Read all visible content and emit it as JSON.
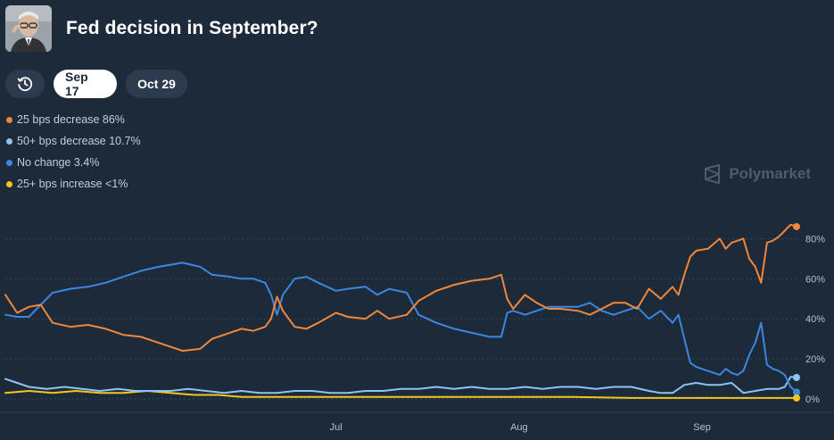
{
  "header": {
    "title": "Fed decision in September?"
  },
  "toolbar": {
    "history_icon": "clock-history-icon",
    "tabs": [
      "Sep 17",
      "Oct 29"
    ],
    "active_tab": "Sep 17"
  },
  "legend": [
    {
      "label": "25 bps decrease 86%",
      "color": "#f2873a"
    },
    {
      "label": "50+ bps decrease 10.7%",
      "color": "#8fc3f5"
    },
    {
      "label": "No change 3.4%",
      "color": "#3b87e0"
    },
    {
      "label": "25+ bps increase <1%",
      "color": "#f5c518"
    }
  ],
  "brand": {
    "name": "Polymarket",
    "icon": "polymarket-logo-icon"
  },
  "chart_data": {
    "type": "line",
    "x_tick_labels": [
      "Jul",
      "Aug",
      "Sep"
    ],
    "y_tick_labels": [
      "80%",
      "60%",
      "40%",
      "20%",
      "0%"
    ],
    "y_ticks": [
      80,
      60,
      40,
      20,
      0
    ],
    "ylim": [
      0,
      90
    ],
    "xlim": [
      "2025-05-06",
      "2025-09-17"
    ],
    "grid": true,
    "series": [
      {
        "name": "25 bps decrease",
        "color": "#f2873a",
        "points": [
          [
            "2025-05-06",
            52
          ],
          [
            "2025-05-08",
            43
          ],
          [
            "2025-05-10",
            46
          ],
          [
            "2025-05-12",
            47
          ],
          [
            "2025-05-14",
            38
          ],
          [
            "2025-05-17",
            36
          ],
          [
            "2025-05-20",
            37
          ],
          [
            "2025-05-23",
            35
          ],
          [
            "2025-05-26",
            32
          ],
          [
            "2025-05-29",
            31
          ],
          [
            "2025-06-01",
            28
          ],
          [
            "2025-06-03",
            26
          ],
          [
            "2025-06-05",
            24
          ],
          [
            "2025-06-08",
            25
          ],
          [
            "2025-06-10",
            30
          ],
          [
            "2025-06-13",
            33
          ],
          [
            "2025-06-15",
            35
          ],
          [
            "2025-06-17",
            34
          ],
          [
            "2025-06-19",
            36
          ],
          [
            "2025-06-20",
            40
          ],
          [
            "2025-06-21",
            51
          ],
          [
            "2025-06-22",
            44
          ],
          [
            "2025-06-24",
            36
          ],
          [
            "2025-06-26",
            35
          ],
          [
            "2025-06-28",
            38
          ],
          [
            "2025-07-01",
            43
          ],
          [
            "2025-07-03",
            41
          ],
          [
            "2025-07-06",
            40
          ],
          [
            "2025-07-08",
            44
          ],
          [
            "2025-07-10",
            40
          ],
          [
            "2025-07-13",
            42
          ],
          [
            "2025-07-15",
            49
          ],
          [
            "2025-07-18",
            54
          ],
          [
            "2025-07-21",
            57
          ],
          [
            "2025-07-24",
            59
          ],
          [
            "2025-07-27",
            60
          ],
          [
            "2025-07-29",
            62
          ],
          [
            "2025-07-30",
            50
          ],
          [
            "2025-07-31",
            45
          ],
          [
            "2025-08-02",
            52
          ],
          [
            "2025-08-04",
            48
          ],
          [
            "2025-08-06",
            45
          ],
          [
            "2025-08-08",
            45
          ],
          [
            "2025-08-11",
            44
          ],
          [
            "2025-08-13",
            42
          ],
          [
            "2025-08-15",
            45
          ],
          [
            "2025-08-17",
            48
          ],
          [
            "2025-08-19",
            48
          ],
          [
            "2025-08-21",
            45
          ],
          [
            "2025-08-23",
            55
          ],
          [
            "2025-08-25",
            50
          ],
          [
            "2025-08-27",
            56
          ],
          [
            "2025-08-28",
            52
          ],
          [
            "2025-08-29",
            62
          ],
          [
            "2025-08-30",
            71
          ],
          [
            "2025-08-31",
            74
          ],
          [
            "2025-09-02",
            75
          ],
          [
            "2025-09-04",
            80
          ],
          [
            "2025-09-05",
            75
          ],
          [
            "2025-09-06",
            78
          ],
          [
            "2025-09-07",
            79
          ],
          [
            "2025-09-08",
            80
          ],
          [
            "2025-09-09",
            70
          ],
          [
            "2025-09-10",
            66
          ],
          [
            "2025-09-11",
            58
          ],
          [
            "2025-09-12",
            78
          ],
          [
            "2025-09-13",
            79
          ],
          [
            "2025-09-14",
            81
          ],
          [
            "2025-09-15",
            84
          ],
          [
            "2025-09-16",
            87
          ],
          [
            "2025-09-17",
            86
          ]
        ]
      },
      {
        "name": "50+ bps decrease",
        "color": "#8fc3f5",
        "points": [
          [
            "2025-05-06",
            10
          ],
          [
            "2025-05-08",
            8
          ],
          [
            "2025-05-10",
            6
          ],
          [
            "2025-05-13",
            5
          ],
          [
            "2025-05-16",
            6
          ],
          [
            "2025-05-19",
            5
          ],
          [
            "2025-05-22",
            4
          ],
          [
            "2025-05-25",
            5
          ],
          [
            "2025-05-28",
            4
          ],
          [
            "2025-05-31",
            4
          ],
          [
            "2025-06-03",
            4
          ],
          [
            "2025-06-06",
            5
          ],
          [
            "2025-06-09",
            4
          ],
          [
            "2025-06-12",
            3
          ],
          [
            "2025-06-15",
            4
          ],
          [
            "2025-06-18",
            3
          ],
          [
            "2025-06-21",
            3
          ],
          [
            "2025-06-24",
            4
          ],
          [
            "2025-06-27",
            4
          ],
          [
            "2025-06-30",
            3
          ],
          [
            "2025-07-03",
            3
          ],
          [
            "2025-07-06",
            4
          ],
          [
            "2025-07-09",
            4
          ],
          [
            "2025-07-12",
            5
          ],
          [
            "2025-07-15",
            5
          ],
          [
            "2025-07-18",
            6
          ],
          [
            "2025-07-21",
            5
          ],
          [
            "2025-07-24",
            6
          ],
          [
            "2025-07-27",
            5
          ],
          [
            "2025-07-30",
            5
          ],
          [
            "2025-08-02",
            6
          ],
          [
            "2025-08-05",
            5
          ],
          [
            "2025-08-08",
            6
          ],
          [
            "2025-08-11",
            6
          ],
          [
            "2025-08-14",
            5
          ],
          [
            "2025-08-17",
            6
          ],
          [
            "2025-08-20",
            6
          ],
          [
            "2025-08-23",
            4
          ],
          [
            "2025-08-25",
            3
          ],
          [
            "2025-08-27",
            3
          ],
          [
            "2025-08-29",
            7
          ],
          [
            "2025-08-31",
            8
          ],
          [
            "2025-09-02",
            7
          ],
          [
            "2025-09-04",
            7
          ],
          [
            "2025-09-06",
            8
          ],
          [
            "2025-09-08",
            3
          ],
          [
            "2025-09-10",
            4
          ],
          [
            "2025-09-12",
            5
          ],
          [
            "2025-09-14",
            5
          ],
          [
            "2025-09-15",
            6
          ],
          [
            "2025-09-16",
            11
          ],
          [
            "2025-09-17",
            10.7
          ]
        ]
      },
      {
        "name": "No change",
        "color": "#3b87e0",
        "points": [
          [
            "2025-05-06",
            42
          ],
          [
            "2025-05-08",
            41
          ],
          [
            "2025-05-10",
            41
          ],
          [
            "2025-05-12",
            47
          ],
          [
            "2025-05-14",
            53
          ],
          [
            "2025-05-17",
            55
          ],
          [
            "2025-05-20",
            56
          ],
          [
            "2025-05-23",
            58
          ],
          [
            "2025-05-26",
            61
          ],
          [
            "2025-05-29",
            64
          ],
          [
            "2025-06-01",
            66
          ],
          [
            "2025-06-03",
            67
          ],
          [
            "2025-06-05",
            68
          ],
          [
            "2025-06-08",
            66
          ],
          [
            "2025-06-10",
            62
          ],
          [
            "2025-06-13",
            61
          ],
          [
            "2025-06-15",
            60
          ],
          [
            "2025-06-17",
            60
          ],
          [
            "2025-06-19",
            58
          ],
          [
            "2025-06-20",
            52
          ],
          [
            "2025-06-21",
            42
          ],
          [
            "2025-06-22",
            52
          ],
          [
            "2025-06-24",
            60
          ],
          [
            "2025-06-26",
            61
          ],
          [
            "2025-06-28",
            58
          ],
          [
            "2025-07-01",
            54
          ],
          [
            "2025-07-03",
            55
          ],
          [
            "2025-07-06",
            56
          ],
          [
            "2025-07-08",
            52
          ],
          [
            "2025-07-10",
            55
          ],
          [
            "2025-07-13",
            53
          ],
          [
            "2025-07-15",
            42
          ],
          [
            "2025-07-18",
            38
          ],
          [
            "2025-07-21",
            35
          ],
          [
            "2025-07-24",
            33
          ],
          [
            "2025-07-27",
            31
          ],
          [
            "2025-07-29",
            31
          ],
          [
            "2025-07-30",
            43
          ],
          [
            "2025-07-31",
            44
          ],
          [
            "2025-08-02",
            42
          ],
          [
            "2025-08-04",
            44
          ],
          [
            "2025-08-06",
            46
          ],
          [
            "2025-08-08",
            46
          ],
          [
            "2025-08-11",
            46
          ],
          [
            "2025-08-13",
            48
          ],
          [
            "2025-08-15",
            44
          ],
          [
            "2025-08-17",
            42
          ],
          [
            "2025-08-19",
            44
          ],
          [
            "2025-08-21",
            46
          ],
          [
            "2025-08-23",
            40
          ],
          [
            "2025-08-25",
            44
          ],
          [
            "2025-08-27",
            38
          ],
          [
            "2025-08-28",
            42
          ],
          [
            "2025-08-29",
            30
          ],
          [
            "2025-08-30",
            18
          ],
          [
            "2025-08-31",
            16
          ],
          [
            "2025-09-02",
            14
          ],
          [
            "2025-09-04",
            12
          ],
          [
            "2025-09-05",
            15
          ],
          [
            "2025-09-06",
            13
          ],
          [
            "2025-09-07",
            12
          ],
          [
            "2025-09-08",
            14
          ],
          [
            "2025-09-09",
            22
          ],
          [
            "2025-09-10",
            28
          ],
          [
            "2025-09-11",
            38
          ],
          [
            "2025-09-12",
            17
          ],
          [
            "2025-09-13",
            15
          ],
          [
            "2025-09-14",
            14
          ],
          [
            "2025-09-15",
            12
          ],
          [
            "2025-09-16",
            6
          ],
          [
            "2025-09-17",
            3.4
          ]
        ]
      },
      {
        "name": "25+ bps increase",
        "color": "#f5c518",
        "points": [
          [
            "2025-05-06",
            3
          ],
          [
            "2025-05-10",
            4
          ],
          [
            "2025-05-14",
            3
          ],
          [
            "2025-05-18",
            4
          ],
          [
            "2025-05-22",
            3
          ],
          [
            "2025-05-26",
            3
          ],
          [
            "2025-05-30",
            4
          ],
          [
            "2025-06-03",
            3
          ],
          [
            "2025-06-07",
            2
          ],
          [
            "2025-06-11",
            2
          ],
          [
            "2025-06-15",
            1
          ],
          [
            "2025-06-20",
            1
          ],
          [
            "2025-06-25",
            1
          ],
          [
            "2025-07-01",
            1
          ],
          [
            "2025-07-10",
            1
          ],
          [
            "2025-07-20",
            1
          ],
          [
            "2025-08-01",
            1
          ],
          [
            "2025-08-10",
            1
          ],
          [
            "2025-08-20",
            0.5
          ],
          [
            "2025-09-01",
            0.5
          ],
          [
            "2025-09-10",
            0.5
          ],
          [
            "2025-09-17",
            0.5
          ]
        ]
      }
    ]
  }
}
